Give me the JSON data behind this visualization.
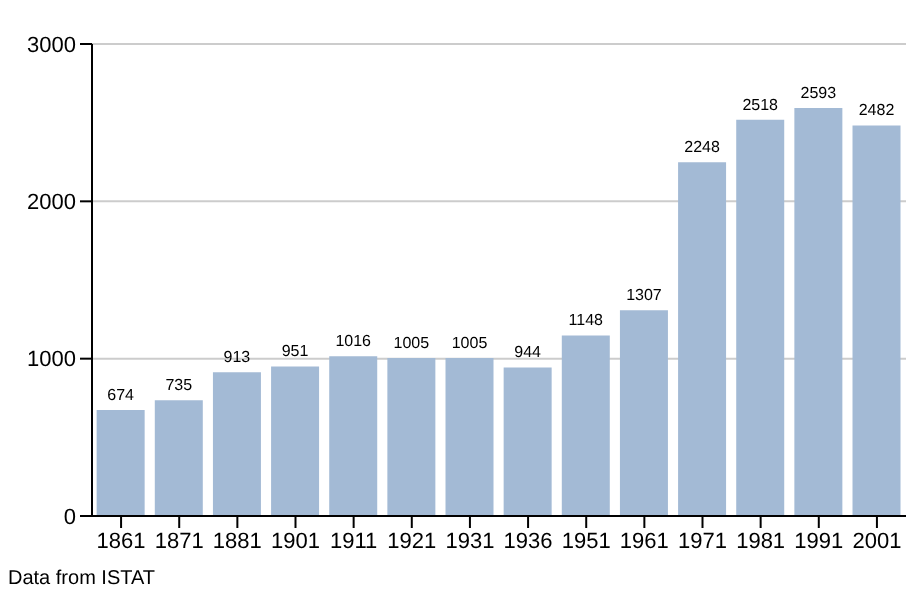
{
  "chart_data": {
    "type": "bar",
    "categories": [
      "1861",
      "1871",
      "1881",
      "1901",
      "1911",
      "1921",
      "1931",
      "1936",
      "1951",
      "1961",
      "1971",
      "1981",
      "1991",
      "2001"
    ],
    "values": [
      674,
      735,
      913,
      951,
      1016,
      1005,
      1005,
      944,
      1148,
      1307,
      2248,
      2518,
      2593,
      2482
    ],
    "color": "#a3bad5",
    "ylim": [
      0,
      3000
    ],
    "yticks": [
      0,
      1000,
      2000,
      3000
    ],
    "grid": "y",
    "data_labels": true,
    "annotations": [
      "Data from ISTAT"
    ]
  }
}
